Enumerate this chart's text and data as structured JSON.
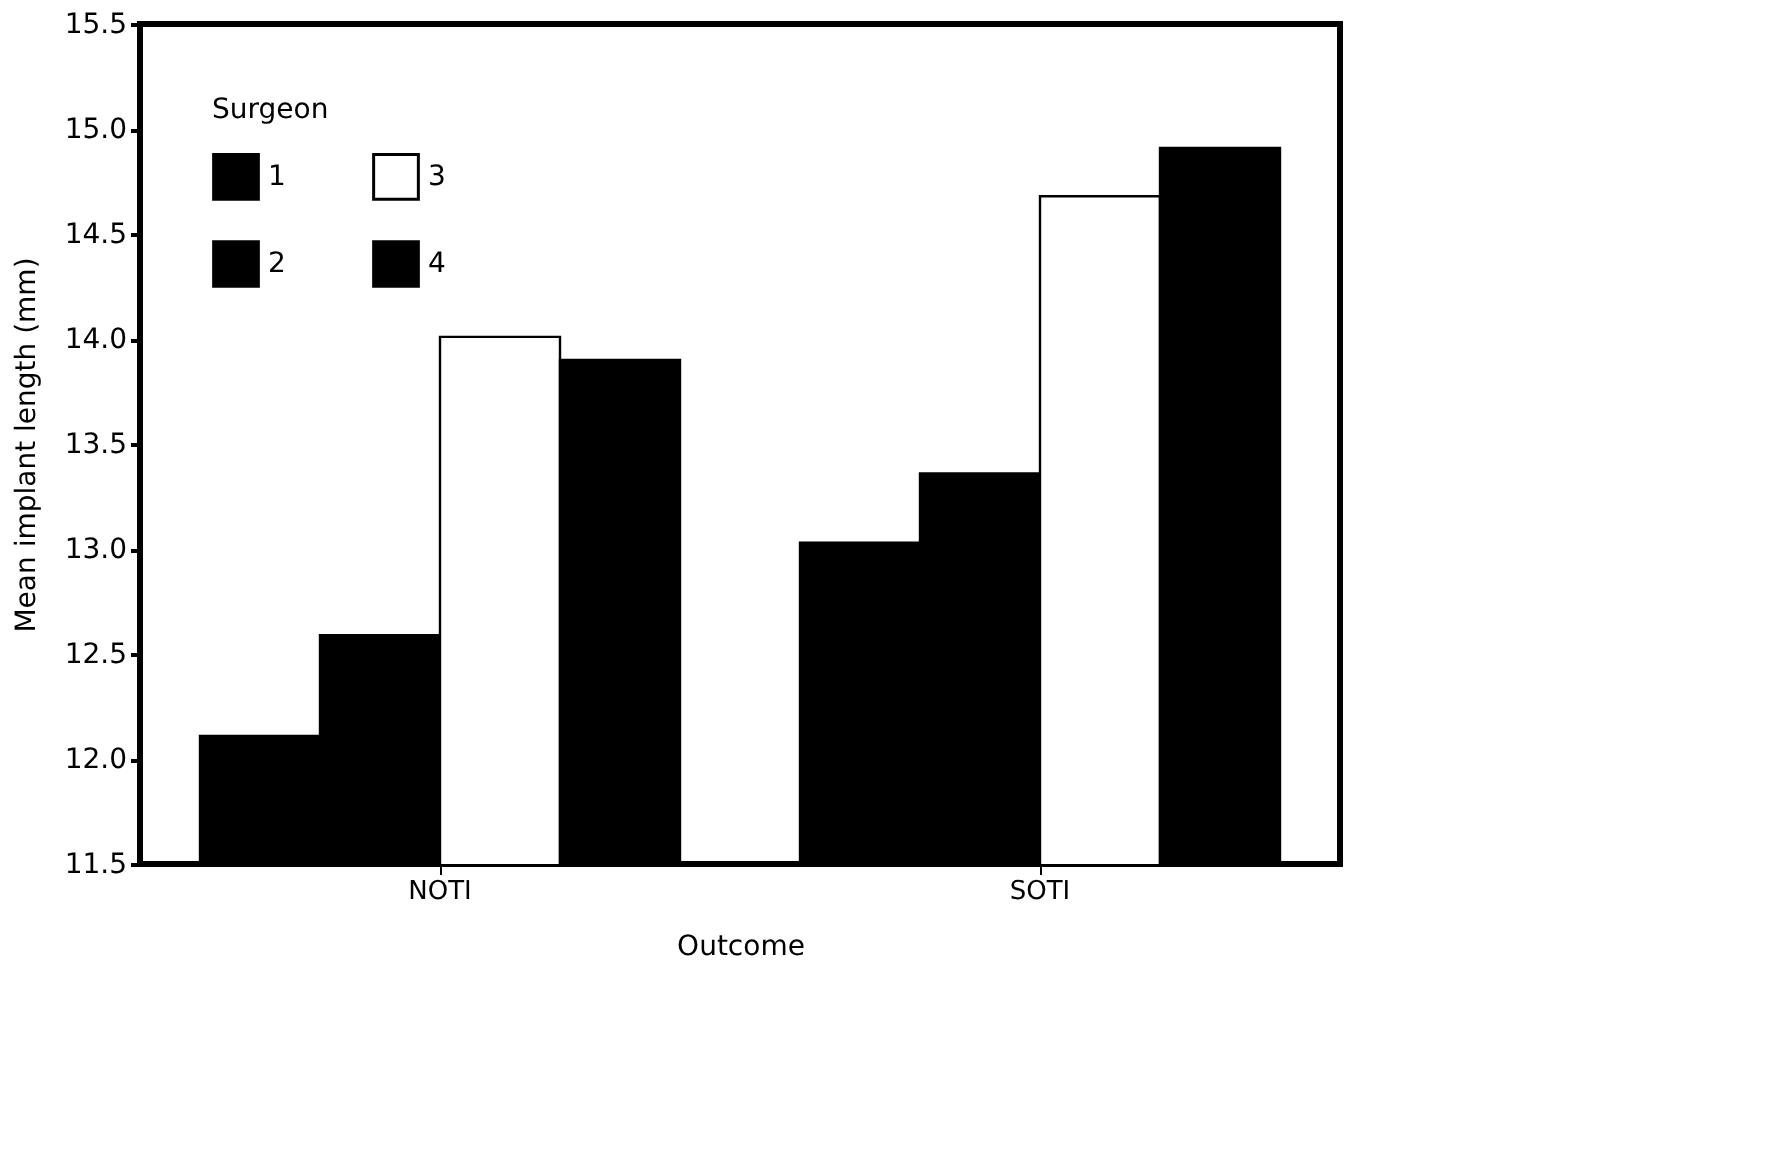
{
  "chart_data": {
    "type": "bar",
    "xlabel": "Outcome",
    "ylabel": "Mean implant length (mm)",
    "legend_title": "Surgeon",
    "categories": [
      "NOTI",
      "SOTI"
    ],
    "series": [
      {
        "name": "1",
        "color": "#000000",
        "values": [
          12.11,
          13.03
        ]
      },
      {
        "name": "2",
        "color": "#000000",
        "values": [
          12.59,
          13.36
        ]
      },
      {
        "name": "3",
        "color": "#ffffff",
        "values": [
          14.01,
          14.68
        ]
      },
      {
        "name": "4",
        "color": "#000000",
        "values": [
          13.9,
          14.91
        ]
      }
    ],
    "ylim": [
      11.5,
      15.5
    ],
    "yticks": [
      11.5,
      {
        "value": 12,
        "label": "12.0"
      },
      12.5,
      {
        "value": 13,
        "label": "13.0"
      },
      13.5,
      {
        "value": 14,
        "label": "14.0"
      },
      14.5,
      {
        "value": 15,
        "label": "15.0"
      },
      15.5
    ],
    "grid": false,
    "legend": "top left"
  }
}
